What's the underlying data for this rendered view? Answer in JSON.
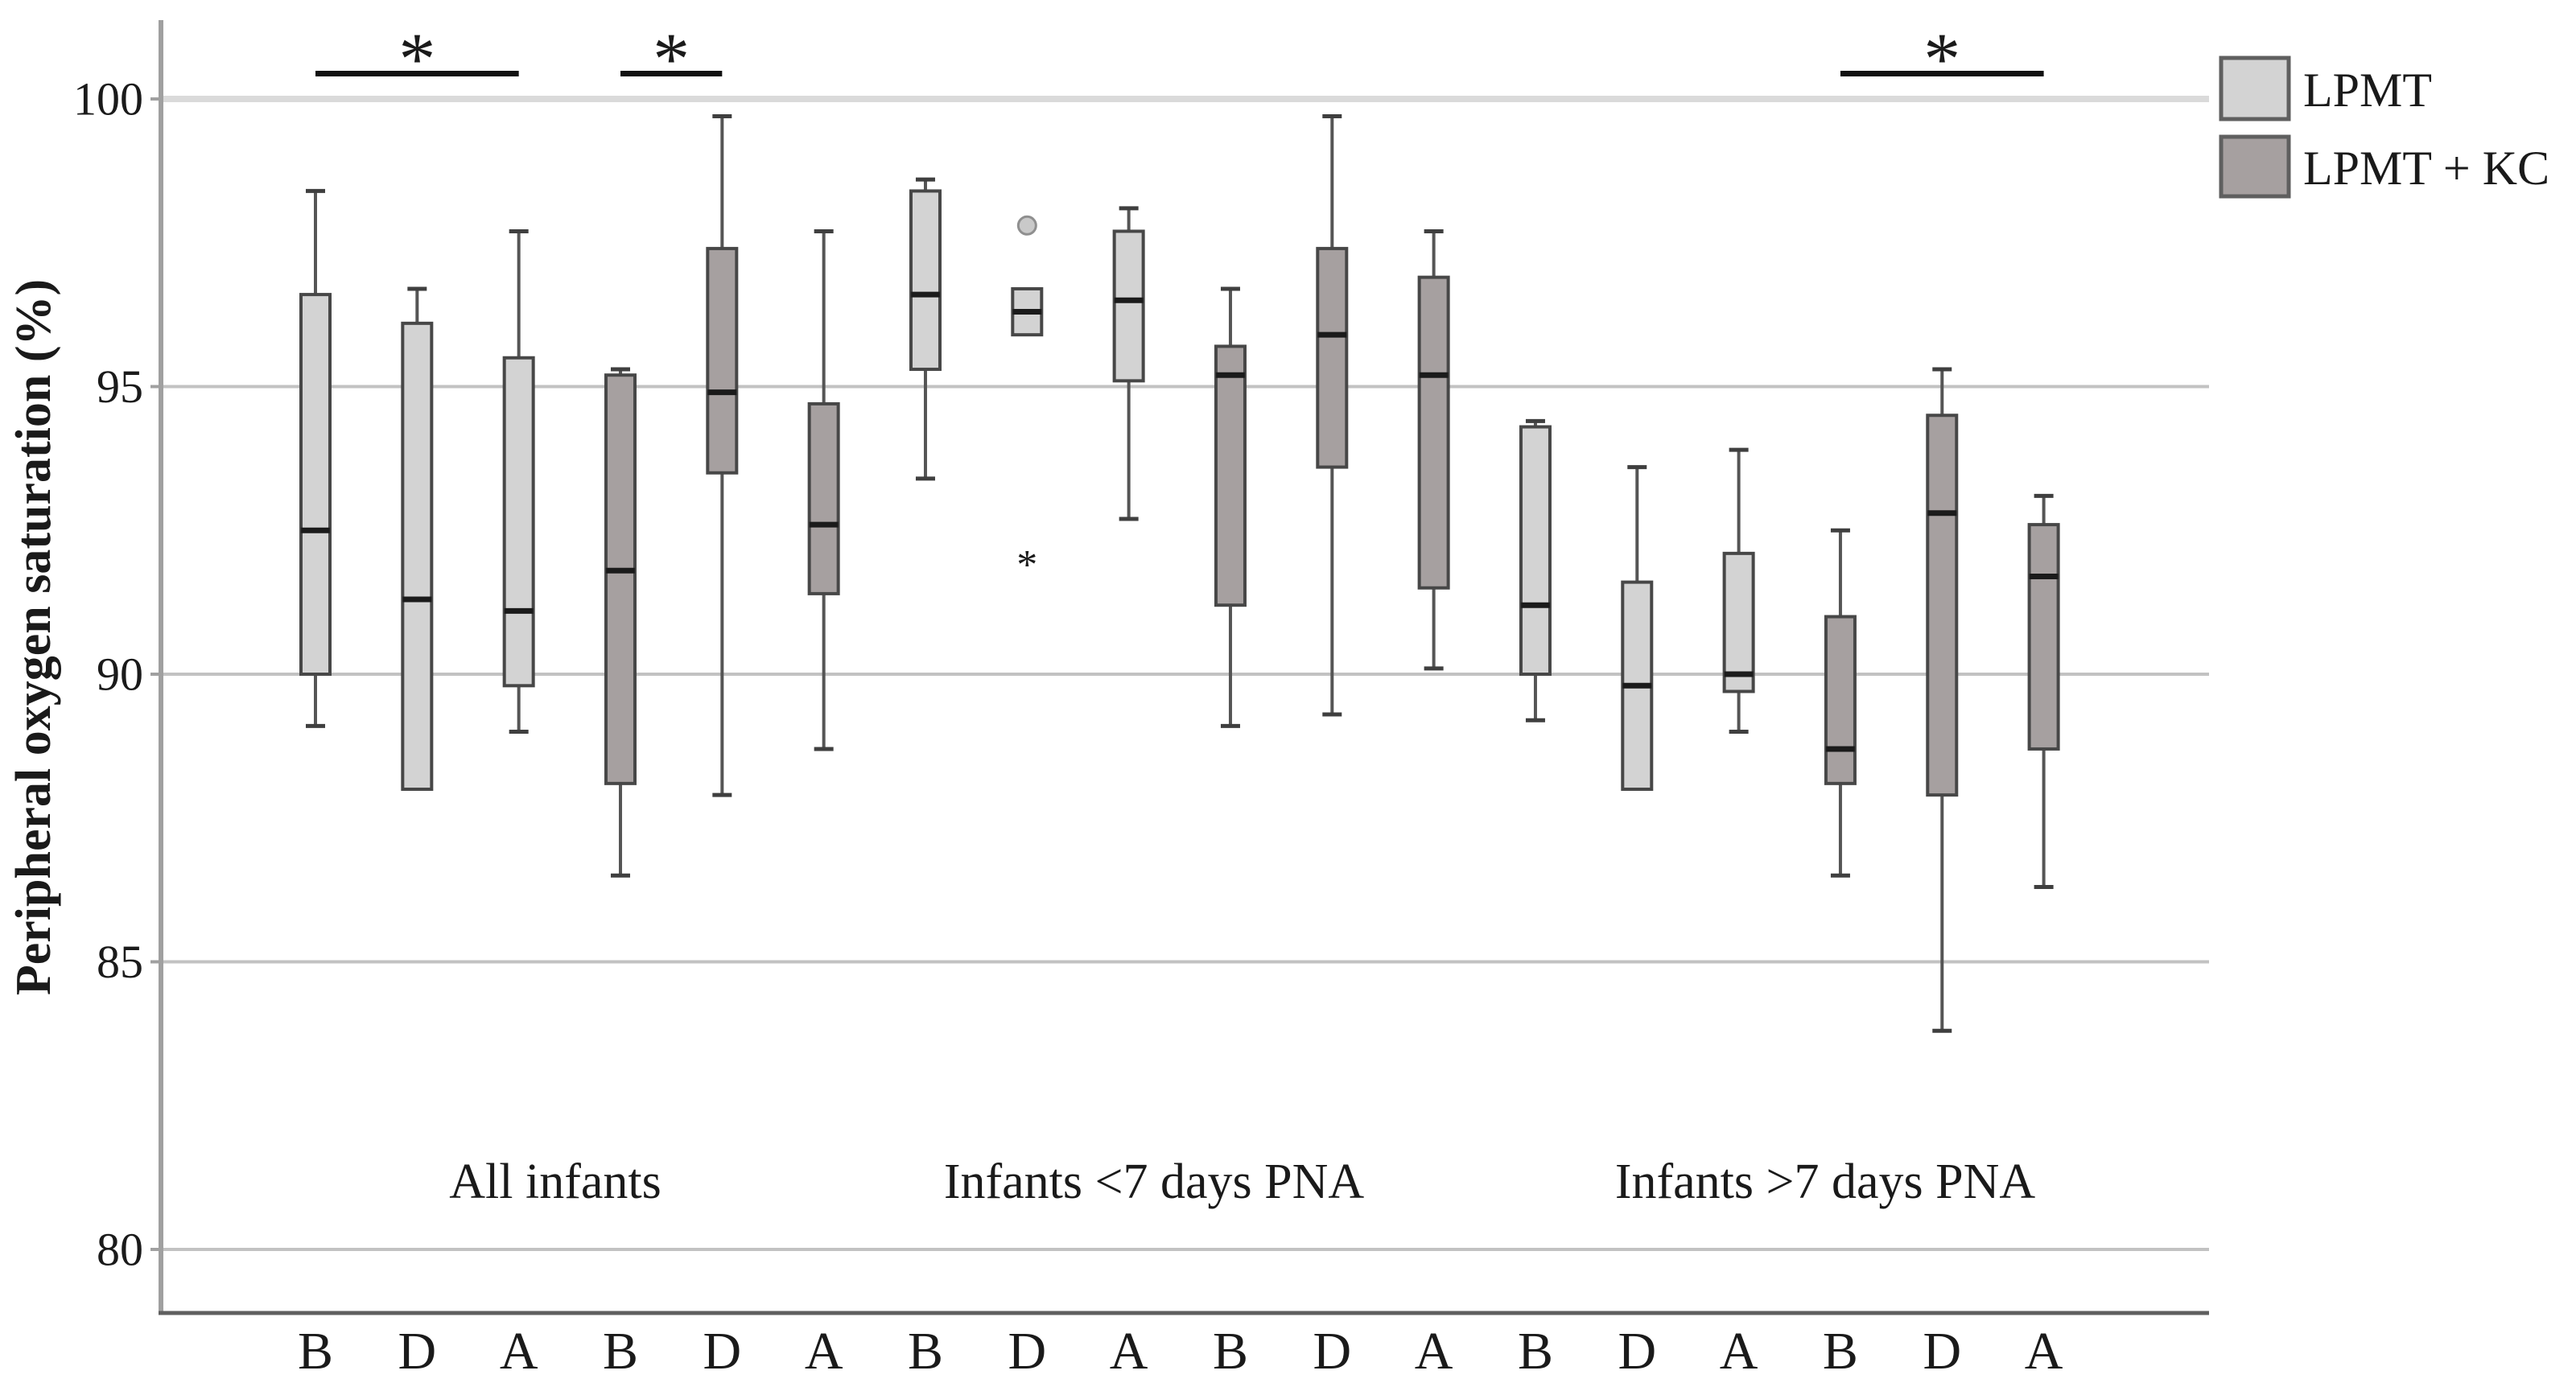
{
  "chart_data": {
    "type": "boxplot",
    "title": "",
    "ylabel": "Peripheral oxygen saturation (%)",
    "xlabel": "",
    "ylim": [
      78.9,
      101.4
    ],
    "yticks": [
      100,
      95,
      90,
      85,
      80
    ],
    "grid": true,
    "legend": {
      "position": "top-right",
      "entries": [
        {
          "label": "LPMT",
          "color": "#d3d3d3"
        },
        {
          "label": "LPMT + KC",
          "color": "#a6a0a0"
        }
      ]
    },
    "groups": [
      {
        "label": "All infants",
        "boxes": [
          {
            "tick": "B",
            "series": "LPMT",
            "min": 89.1,
            "q1": 90.0,
            "median": 92.5,
            "q3": 96.6,
            "max": 98.4,
            "outliers": [],
            "extreme_outliers": []
          },
          {
            "tick": "D",
            "series": "LPMT",
            "min": 88.0,
            "q1": 88.0,
            "median": 91.3,
            "q3": 96.1,
            "max": 96.7,
            "outliers": [],
            "extreme_outliers": []
          },
          {
            "tick": "A",
            "series": "LPMT",
            "min": 89.0,
            "q1": 89.8,
            "median": 91.1,
            "q3": 95.5,
            "max": 97.7,
            "outliers": [],
            "extreme_outliers": []
          },
          {
            "tick": "B",
            "series": "LPMT + KC",
            "min": 86.5,
            "q1": 88.1,
            "median": 91.8,
            "q3": 95.2,
            "max": 95.3,
            "outliers": [],
            "extreme_outliers": []
          },
          {
            "tick": "D",
            "series": "LPMT + KC",
            "min": 87.9,
            "q1": 93.5,
            "median": 94.9,
            "q3": 97.4,
            "max": 99.7,
            "outliers": [],
            "extreme_outliers": []
          },
          {
            "tick": "A",
            "series": "LPMT + KC",
            "min": 88.7,
            "q1": 91.4,
            "median": 92.6,
            "q3": 94.7,
            "max": 97.7,
            "outliers": [],
            "extreme_outliers": []
          }
        ]
      },
      {
        "label": "Infants <7 days PNA",
        "boxes": [
          {
            "tick": "B",
            "series": "LPMT",
            "min": 93.4,
            "q1": 95.3,
            "median": 96.6,
            "q3": 98.4,
            "max": 98.6,
            "outliers": [],
            "extreme_outliers": []
          },
          {
            "tick": "D",
            "series": "LPMT",
            "min": 95.9,
            "q1": 95.9,
            "median": 96.3,
            "q3": 96.7,
            "max": 96.7,
            "outliers": [
              97.8
            ],
            "extreme_outliers": [
              92.0
            ]
          },
          {
            "tick": "A",
            "series": "LPMT",
            "min": 92.7,
            "q1": 95.1,
            "median": 96.5,
            "q3": 97.7,
            "max": 98.1,
            "outliers": [],
            "extreme_outliers": []
          },
          {
            "tick": "B",
            "series": "LPMT + KC",
            "min": 89.1,
            "q1": 91.2,
            "median": 95.2,
            "q3": 95.7,
            "max": 96.7,
            "outliers": [],
            "extreme_outliers": []
          },
          {
            "tick": "D",
            "series": "LPMT + KC",
            "min": 89.3,
            "q1": 93.6,
            "median": 95.9,
            "q3": 97.4,
            "max": 99.7,
            "outliers": [],
            "extreme_outliers": []
          },
          {
            "tick": "A",
            "series": "LPMT + KC",
            "min": 90.1,
            "q1": 91.5,
            "median": 95.2,
            "q3": 96.9,
            "max": 97.7,
            "outliers": [],
            "extreme_outliers": []
          }
        ]
      },
      {
        "label": "Infants >7 days PNA",
        "boxes": [
          {
            "tick": "B",
            "series": "LPMT",
            "min": 89.2,
            "q1": 90.0,
            "median": 91.2,
            "q3": 94.3,
            "max": 94.4,
            "outliers": [],
            "extreme_outliers": []
          },
          {
            "tick": "D",
            "series": "LPMT",
            "min": 88.0,
            "q1": 88.0,
            "median": 89.8,
            "q3": 91.6,
            "max": 93.6,
            "outliers": [],
            "extreme_outliers": []
          },
          {
            "tick": "A",
            "series": "LPMT",
            "min": 89.0,
            "q1": 89.7,
            "median": 90.0,
            "q3": 92.1,
            "max": 93.9,
            "outliers": [],
            "extreme_outliers": []
          },
          {
            "tick": "B",
            "series": "LPMT + KC",
            "min": 86.5,
            "q1": 88.1,
            "median": 88.7,
            "q3": 91.0,
            "max": 92.5,
            "outliers": [],
            "extreme_outliers": []
          },
          {
            "tick": "D",
            "series": "LPMT + KC",
            "min": 83.8,
            "q1": 87.9,
            "median": 92.8,
            "q3": 94.5,
            "max": 95.3,
            "outliers": [],
            "extreme_outliers": []
          },
          {
            "tick": "A",
            "series": "LPMT + KC",
            "min": 86.3,
            "q1": 88.7,
            "median": 91.7,
            "q3": 92.6,
            "max": 93.1,
            "outliers": [],
            "extreme_outliers": []
          }
        ]
      }
    ],
    "significance": [
      {
        "from_box": 0,
        "to_box": 2,
        "symbol": "*"
      },
      {
        "from_box": 3,
        "to_box": 4,
        "symbol": "*"
      },
      {
        "from_box": 15,
        "to_box": 17,
        "symbol": "*"
      }
    ]
  }
}
